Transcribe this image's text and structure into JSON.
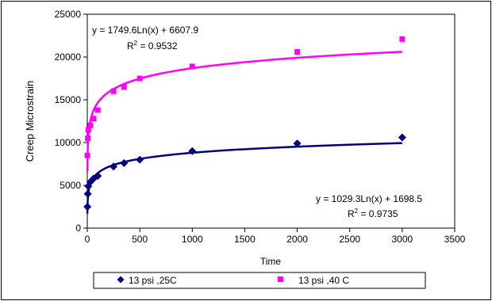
{
  "chart_data": {
    "type": "scatter",
    "xlabel": "Time",
    "ylabel": "Creep Microstrain",
    "xlim": [
      0,
      3500
    ],
    "ylim": [
      0,
      25000
    ],
    "x_ticks": [
      0,
      500,
      1000,
      1500,
      2000,
      2500,
      3000,
      3500
    ],
    "y_ticks": [
      0,
      5000,
      10000,
      15000,
      20000,
      25000
    ],
    "x_tick_labels": [
      "0",
      "500",
      "1000",
      "1500",
      "2000",
      "2500",
      "3000",
      "3500"
    ],
    "y_tick_labels": [
      "0",
      "5000",
      "10000",
      "15000",
      "20000",
      "25000"
    ],
    "grid": false,
    "legend_position": "bottom",
    "series": [
      {
        "name": "13 psi ,25C",
        "color": "#000080",
        "marker": "diamond",
        "x": [
          1,
          5,
          10,
          30,
          60,
          100,
          250,
          350,
          500,
          1000,
          2000,
          3000
        ],
        "y": [
          2500,
          4000,
          4900,
          5400,
          5800,
          6100,
          7200,
          7600,
          8000,
          9000,
          9900,
          10600
        ],
        "trendline": {
          "type": "logarithmic",
          "a": 1029.3,
          "b": 1698.5,
          "equation": "y = 1029.3Ln(x) + 1698.5",
          "r2_label": "R",
          "r2_sup": "2",
          "r2_value": " = 0.9735"
        }
      },
      {
        "name": "13 psi ,40 C",
        "color": "#ff00ff",
        "marker": "square",
        "x": [
          1,
          5,
          10,
          30,
          60,
          100,
          250,
          350,
          500,
          1000,
          2000,
          3000
        ],
        "y": [
          8500,
          10500,
          11500,
          12000,
          12800,
          13800,
          16000,
          16500,
          17500,
          18900,
          20600,
          22100
        ],
        "trendline": {
          "type": "logarithmic",
          "a": 1749.6,
          "b": 6607.9,
          "equation": "y = 1749.6Ln(x) + 6607.9",
          "r2_label": "R",
          "r2_sup": "2",
          "r2_value": " = 0.9532"
        }
      }
    ]
  }
}
